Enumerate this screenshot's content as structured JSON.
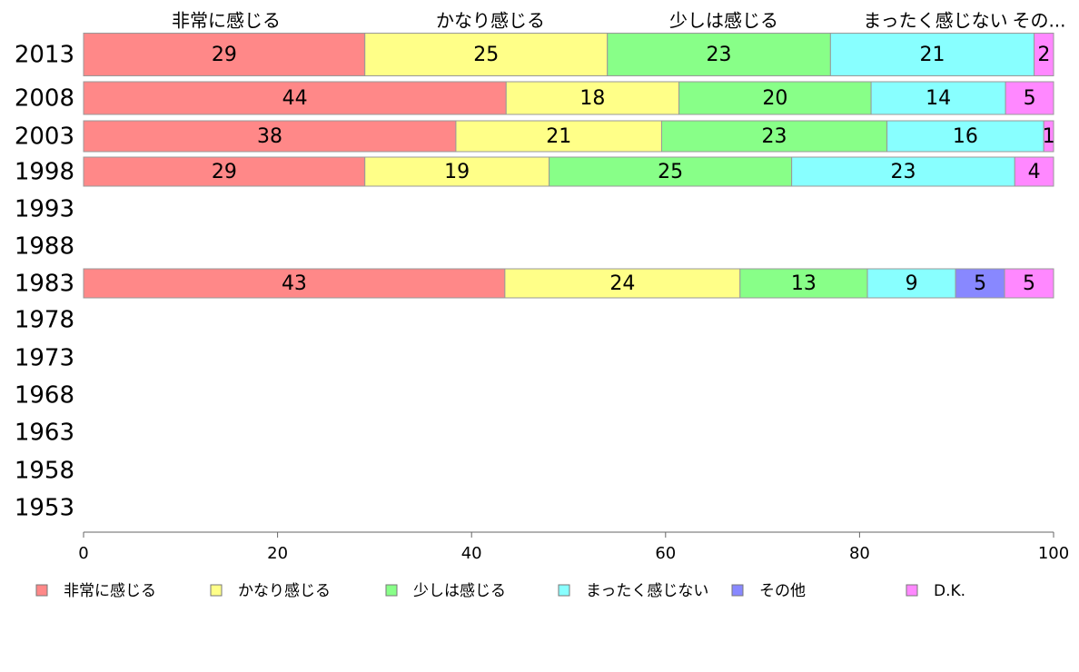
{
  "chart_data": {
    "type": "bar",
    "orientation": "horizontal",
    "stacked": true,
    "categories": [
      "2013",
      "2008",
      "2003",
      "1998",
      "1993",
      "1988",
      "1983",
      "1978",
      "1973",
      "1968",
      "1963",
      "1958",
      "1953"
    ],
    "series": [
      {
        "name": "非常に感じる",
        "color": "#ff8888",
        "values": [
          29,
          44,
          38,
          29,
          null,
          null,
          43,
          null,
          null,
          null,
          null,
          null,
          null
        ]
      },
      {
        "name": "かなり感じる",
        "color": "#ffff88",
        "values": [
          25,
          18,
          21,
          19,
          null,
          null,
          24,
          null,
          null,
          null,
          null,
          null,
          null
        ]
      },
      {
        "name": "少しは感じる",
        "color": "#88ff88",
        "values": [
          23,
          20,
          23,
          25,
          null,
          null,
          13,
          null,
          null,
          null,
          null,
          null,
          null
        ]
      },
      {
        "name": "まったく感じない",
        "color": "#88ffff",
        "values": [
          21,
          14,
          16,
          23,
          null,
          null,
          9,
          null,
          null,
          null,
          null,
          null,
          null
        ]
      },
      {
        "name": "その他",
        "color": "#8888ff",
        "values": [
          0,
          0,
          0,
          0,
          null,
          null,
          5,
          null,
          null,
          null,
          null,
          null,
          null
        ]
      },
      {
        "name": "D.K.",
        "color": "#ff88ff",
        "values": [
          2,
          5,
          1,
          4,
          null,
          null,
          5,
          null,
          null,
          null,
          null,
          null,
          null
        ]
      }
    ],
    "column_headers": [
      "非常に感じる",
      "かなり感じる",
      "少しは感じる",
      "まったく感じない",
      "その..."
    ],
    "xlim": [
      0,
      100
    ],
    "x_ticks": [
      "0",
      "20",
      "40",
      "60",
      "80",
      "100"
    ],
    "grid": false,
    "legend_position": "bottom"
  }
}
